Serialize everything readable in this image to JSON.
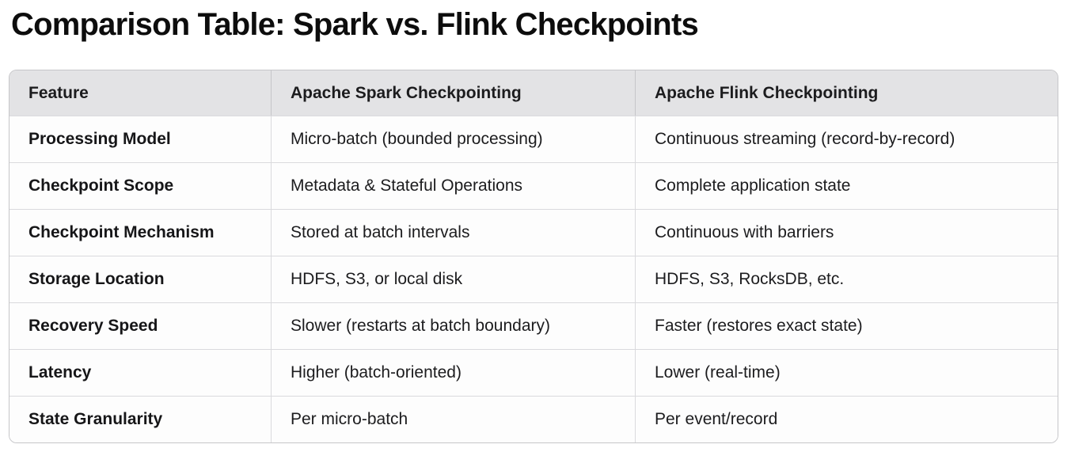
{
  "page": {
    "title": "Comparison Table: Spark vs. Flink Checkpoints"
  },
  "table": {
    "columns": [
      "Feature",
      "Apache Spark Checkpointing",
      "Apache Flink Checkpointing"
    ],
    "rows": [
      {
        "feature": "Processing Model",
        "spark": "Micro-batch (bounded processing)",
        "flink": "Continuous streaming (record-by-record)"
      },
      {
        "feature": "Checkpoint Scope",
        "spark": "Metadata & Stateful Operations",
        "flink": "Complete application state"
      },
      {
        "feature": "Checkpoint Mechanism",
        "spark": "Stored at batch intervals",
        "flink": "Continuous with barriers"
      },
      {
        "feature": "Storage Location",
        "spark": "HDFS, S3, or local disk",
        "flink": "HDFS, S3, RocksDB, etc."
      },
      {
        "feature": "Recovery Speed",
        "spark": "Slower (restarts at batch boundary)",
        "flink": "Faster (restores exact state)"
      },
      {
        "feature": "Latency",
        "spark": "Higher (batch-oriented)",
        "flink": "Lower (real-time)"
      },
      {
        "feature": "State Granularity",
        "spark": "Per micro-batch",
        "flink": "Per event/record"
      }
    ],
    "colors": {
      "header_background": "#e3e3e5",
      "outer_border": "#c6c6c9",
      "row_divider": "#dadadd",
      "body_background": "#fdfdfd",
      "text": "#1c1c1e"
    }
  }
}
